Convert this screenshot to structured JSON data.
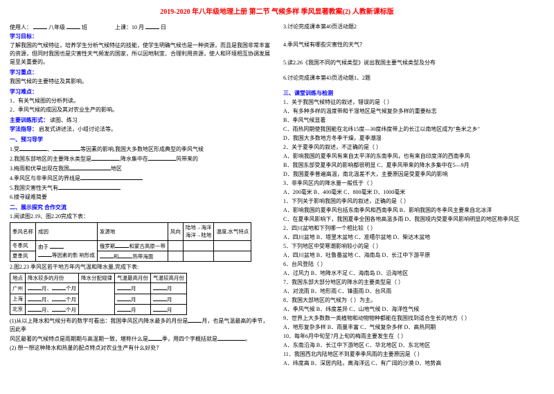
{
  "title": "2019-2020 年八年级地理上册 第二节 气候多样 季风显著教案(2) 人教新课标版",
  "header": {
    "user_label": "使用人：",
    "grade": "八年级",
    "ban": "班",
    "class_label": "上课：10 月",
    "ri": "日"
  },
  "left": {
    "goal_h": "学习目标：",
    "goal_t": "了解我国的气候特征，培养学生分析气候特征的技能，使学生明确气候也是一种资源，而且是我国非常丰富的资源，但同时我国也是灾害性天气频发的国家，所以因地制宜、合理利用资源，使人和环境相互协调发展是至关重要的。",
    "focus_h": "学习重点：",
    "focus_t": "我国气候的主要特征及其影响。",
    "diff_h": "学习难点：",
    "diff_items": [
      "1．有关气候图的分析判读。",
      "2．季风气候的成因及其对农业生产的影响。"
    ],
    "train_h": "主要训练形式：",
    "train_t": "读图、练习",
    "method_h": "学法指导：",
    "method_t": "启发式讲述法，小组讨论法等。",
    "preview_h": "一、预习导学",
    "pv1_a": "1.受",
    "pv1_b": "、",
    "pv1_c": "等因素的影响,我国大多数地区形成典型的季风气候",
    "pv2_a": "2.我国东部地区的主要降水类型是",
    "pv2_b": ",降水集中在",
    "pv2_c": "风带来的",
    "pv3_a": "3.梅雨和伏旱出现在我国",
    "pv3_b": "地区",
    "pv4_a": "4.季风区与非季风区的界线是",
    "pv5_a": "5.我国灾害性天气有",
    "pv6_a": "6.搜寻疑难简要",
    "section2_h": "二、展示探究 合作交流",
    "s2_read": "1.阅读图2.19、图2.20完成下表：",
    "t1": {
      "h": [
        "季风名称",
        "成因",
        "发源地",
        "风向",
        "陆地→海洋\n海洋→陆地",
        "温度,水气特点"
      ],
      "r1": [
        "冬季风",
        "由于\n",
        "俄罗斯",
        "和蒙古高原一带",
        "",
        ""
      ],
      "r2": [
        "夏季风",
        "等因素的影\n响形成",
        "",
        "热带海面",
        "",
        ""
      ]
    },
    "s2_fig": "2.图2.23 季风区若干地方年内气温和降水量,完成下表:",
    "t2": {
      "h": [
        "地点",
        "降水较多的月份",
        "降水分配规律",
        "气温最高月份",
        "气温较高月份"
      ],
      "r1": [
        "广州",
        "月、",
        "个月",
        "",
        "月",
        "月"
      ],
      "r2": [
        "上海",
        "月、",
        "个月",
        "",
        "月",
        "月"
      ],
      "r3": [
        "北京",
        "月、",
        "个月",
        "",
        "月",
        "月"
      ]
    },
    "note1_a": "(1)从以上降水和气候分布的数字可看出：我国季风区内降水最多的月份是",
    "note1_b": "月，也是气温最高的季节，因此季",
    "note1_c": "风区最著的气候特点是雨期期与高温期一致，堪称什么是",
    "note1_d": "季，用四个字概括就是",
    "note1_e": "。",
    "note2_a": "(2) 想一想这种降水和热量的配点特点对农业生产有什么好处？"
  },
  "right": {
    "q3": "3.讨论完成课本第40页活动题2",
    "q4": "4.季风气候有哪些灾害性的天气？",
    "q5": "5.读2.26《我国不同的气候类型》说出我国主要气候类型及分布",
    "q6": "6.讨论完成课本第43页活动题1、2题",
    "s3_h": "三、课堂训练与检测",
    "items": [
      "1．关于我国气候特征的叙述，错误的是（    ）",
      "A．有多种多样的温度带和干湿地区是气候复杂多样的重要标志",
      "B．季风气候显著",
      "C．雨热同期使我国能在北纬15度—30度纬度带上的长江以南地区成为\"鱼米之乡\"",
      "D．我国大多数地方冬季干燥，夏季潮湿",
      "2．关于夏季风的叙述，不正确的是（    ）",
      "A．影响我国的夏季风有来自太平洋的东南季风，也有来自印度洋的西南季风",
      "B．我国东部受夏季风的影响都很明显  C．夏季风带来的降水多集中在5—9月",
      "D．我国夏季普遍高温，南北温差不大，主要原因是受夏季风的影响",
      "3．非季风区内的降水量一般低于（    ）",
      "A．200毫米 B．400毫米 C．800毫米 D．1000毫米",
      "1．下列关于影响我国的季风的叙述，正确的是（    ）",
      "A．影响我国的夏季风包括东南季风和西南季风    B．影响我国的冬季风主要来自北冰洋",
      "C．在夏季风影响下，我国夏季全国各地高温多雨    D．我国境内受夏季风影响明显的地区称季风区",
      "2．四川盆地和下列哪一个相比较（    ）",
      "A．四川盆地   B．塔里木盆地   C．准噶尔盆地   D．柴达木盆地",
      "5．下列地区中受寒潮影响较小的是（    ）",
      "A．四川盆地  B．吐鲁番盆地  C．海南岛  D．长江中下游平原",
      "6．台风登陆（    ）",
      "A．过风力  B．地降水不足  C．海南岛  D．沿海地区",
      "7．我国东部大部分地区的降水的主要类型是（    ）",
      "A．对流雨      B．地形雨  C．锋面雨   D．台风雨",
      "8．我国大部地区的气候为（    ）为主。",
      "A．季风气候  B．纬度差异   C．山地气候  D．海洋性气候",
      "9．世界上大多数数一类植物和动物物种都能在我国找到适合生长的地方（    ）",
      "A．地形复杂多样  B．雨量丰富  C．气候复杂多样  D．高热同期",
      "10．每年6月中旬至7月上旬的梅雨主要发生在（    ）",
      "A．东南沿海   B．长江中下游地区  C．华北地区    D．东北地区",
      "11．我国西北内陆地区不到夏季季风雨的主要原因是（    ）",
      "A．纬度高   B．深居内陆，离海洋远   C．有广阔的沙漠   D．地势高"
    ]
  }
}
